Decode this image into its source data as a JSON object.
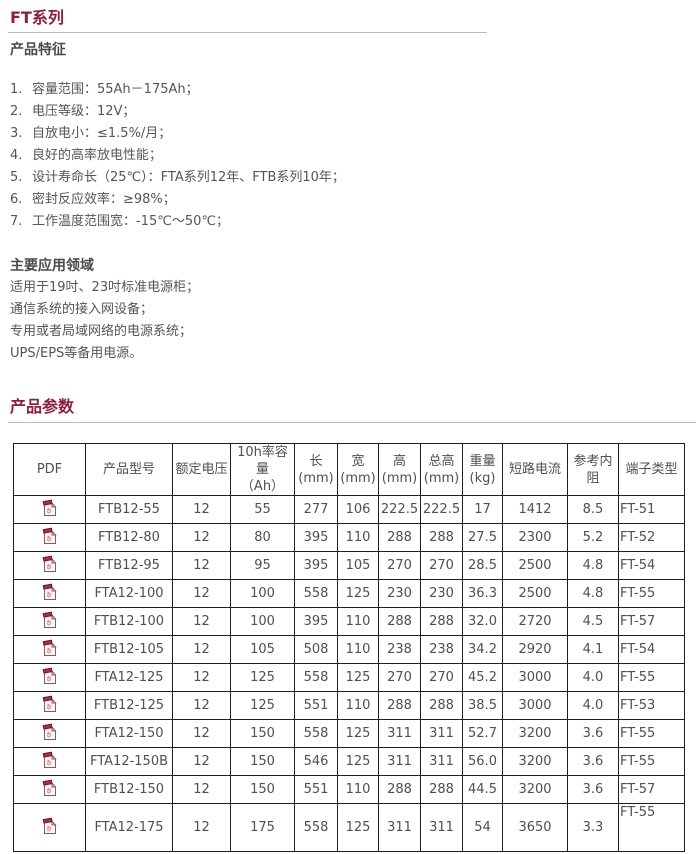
{
  "title": "FT系列",
  "features": {
    "heading": "产品特征",
    "items": [
      {
        "num": "1.",
        "text": "容量范围：55Ah－175Ah；"
      },
      {
        "num": "2.",
        "text": "电压等级：12V；"
      },
      {
        "num": "3.",
        "text": "自放电小：≤1.5%/月；"
      },
      {
        "num": "4.",
        "text": "良好的高率放电性能；"
      },
      {
        "num": "5.",
        "text": "设计寿命长（25℃）：FTA系列12年、FTB系列10年；"
      },
      {
        "num": "6.",
        "text": "密封反应效率：≥98%；"
      },
      {
        "num": "7.",
        "text": "工作温度范围宽：-15℃～50℃；"
      }
    ]
  },
  "applications": {
    "heading": "主要应用领域",
    "lines": [
      "适用于19吋、23吋标准电源柜；",
      "通信系统的接入网设备；",
      "专用或者局域网络的电源系统；",
      "UPS/EPS等备用电源。"
    ]
  },
  "parameters": {
    "heading": "产品参数",
    "table": {
      "columns": [
        {
          "key": "pdf",
          "label": "PDF"
        },
        {
          "key": "model",
          "label": "产品型号"
        },
        {
          "key": "voltage",
          "label": "额定电压"
        },
        {
          "key": "capacity_10h",
          "label": "10h率容量\n（Ah）"
        },
        {
          "key": "length",
          "label": "长(mm)"
        },
        {
          "key": "width",
          "label": "宽(mm)"
        },
        {
          "key": "height",
          "label": "高(mm)"
        },
        {
          "key": "total_height",
          "label": "总高\n(mm)"
        },
        {
          "key": "weight",
          "label": "重量\n(kg)"
        },
        {
          "key": "short_circuit_current",
          "label": "短路电流"
        },
        {
          "key": "internal_resistance",
          "label": "参考内阻"
        },
        {
          "key": "terminal_type",
          "label": "端子类型"
        }
      ],
      "pdf_icon": "pdf-file-icon",
      "rows": [
        [
          "FTB12-55",
          "12",
          "55",
          "277",
          "106",
          "222.5",
          "222.5",
          "17",
          "1412",
          "8.5",
          "FT-51"
        ],
        [
          "FTB12-80",
          "12",
          "80",
          "395",
          "110",
          "288",
          "288",
          "27.5",
          "2300",
          "5.2",
          "FT-52"
        ],
        [
          "FTB12-95",
          "12",
          "95",
          "395",
          "105",
          "270",
          "270",
          "28.5",
          "2500",
          "4.8",
          "FT-54"
        ],
        [
          "FTA12-100",
          "12",
          "100",
          "558",
          "125",
          "230",
          "230",
          "36.3",
          "2500",
          "4.8",
          "FT-55"
        ],
        [
          "FTB12-100",
          "12",
          "100",
          "395",
          "110",
          "288",
          "288",
          "32.0",
          "2720",
          "4.5",
          "FT-57"
        ],
        [
          "FTB12-105",
          "12",
          "105",
          "508",
          "110",
          "238",
          "238",
          "34.2",
          "2920",
          "4.1",
          "FT-54"
        ],
        [
          "FTA12-125",
          "12",
          "125",
          "558",
          "125",
          "270",
          "270",
          "45.2",
          "3000",
          "4.0",
          "FT-55"
        ],
        [
          "FTB12-125",
          "12",
          "125",
          "551",
          "110",
          "288",
          "288",
          "38.5",
          "3000",
          "4.0",
          "FT-53"
        ],
        [
          "FTA12-150",
          "12",
          "150",
          "558",
          "125",
          "311",
          "311",
          "52.7",
          "3200",
          "3.6",
          "FT-55"
        ],
        [
          "FTA12-150B",
          "12",
          "150",
          "546",
          "125",
          "311",
          "311",
          "56.0",
          "3200",
          "3.6",
          "FT-55"
        ],
        [
          "FTB12-150",
          "12",
          "150",
          "551",
          "110",
          "288",
          "288",
          "44.5",
          "3200",
          "3.6",
          "FT-57"
        ],
        [
          "FTA12-175",
          "12",
          "175",
          "558",
          "125",
          "311",
          "311",
          "54",
          "3650",
          "3.3",
          "FT-55"
        ]
      ]
    }
  },
  "colors": {
    "accent": "#8b2142",
    "heading_gray": "#4a4a4a",
    "body_text": "#55555a",
    "table_border": "#1f1f1f",
    "rule_light": "#bcbcc0",
    "pdf_icon_red": "#b03040"
  }
}
